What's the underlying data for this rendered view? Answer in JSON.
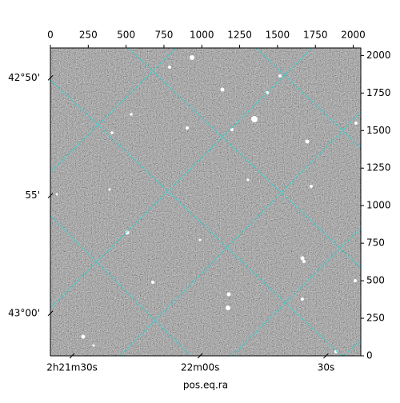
{
  "chart_data": {
    "type": "image",
    "xlabel": "pos.eq.ra",
    "xlim": [
      0,
      2050
    ],
    "xticks": [
      0,
      250,
      500,
      750,
      1000,
      1250,
      1500,
      1750,
      2000
    ],
    "ylim": [
      0,
      2050
    ],
    "yticks": [
      0,
      250,
      500,
      750,
      1000,
      1250,
      1500,
      1750,
      2000
    ],
    "y_world_ticks": [
      {
        "value": 1851,
        "label": "42°50'"
      },
      {
        "value": 1067,
        "label": "55'"
      },
      {
        "value": 283,
        "label": "43°00'"
      }
    ],
    "x_world_ticks": [
      {
        "value": 143,
        "label": "2h21m30s"
      },
      {
        "value": 989,
        "label": "22m00s"
      },
      {
        "value": 1820,
        "label": "30s"
      }
    ]
  }
}
